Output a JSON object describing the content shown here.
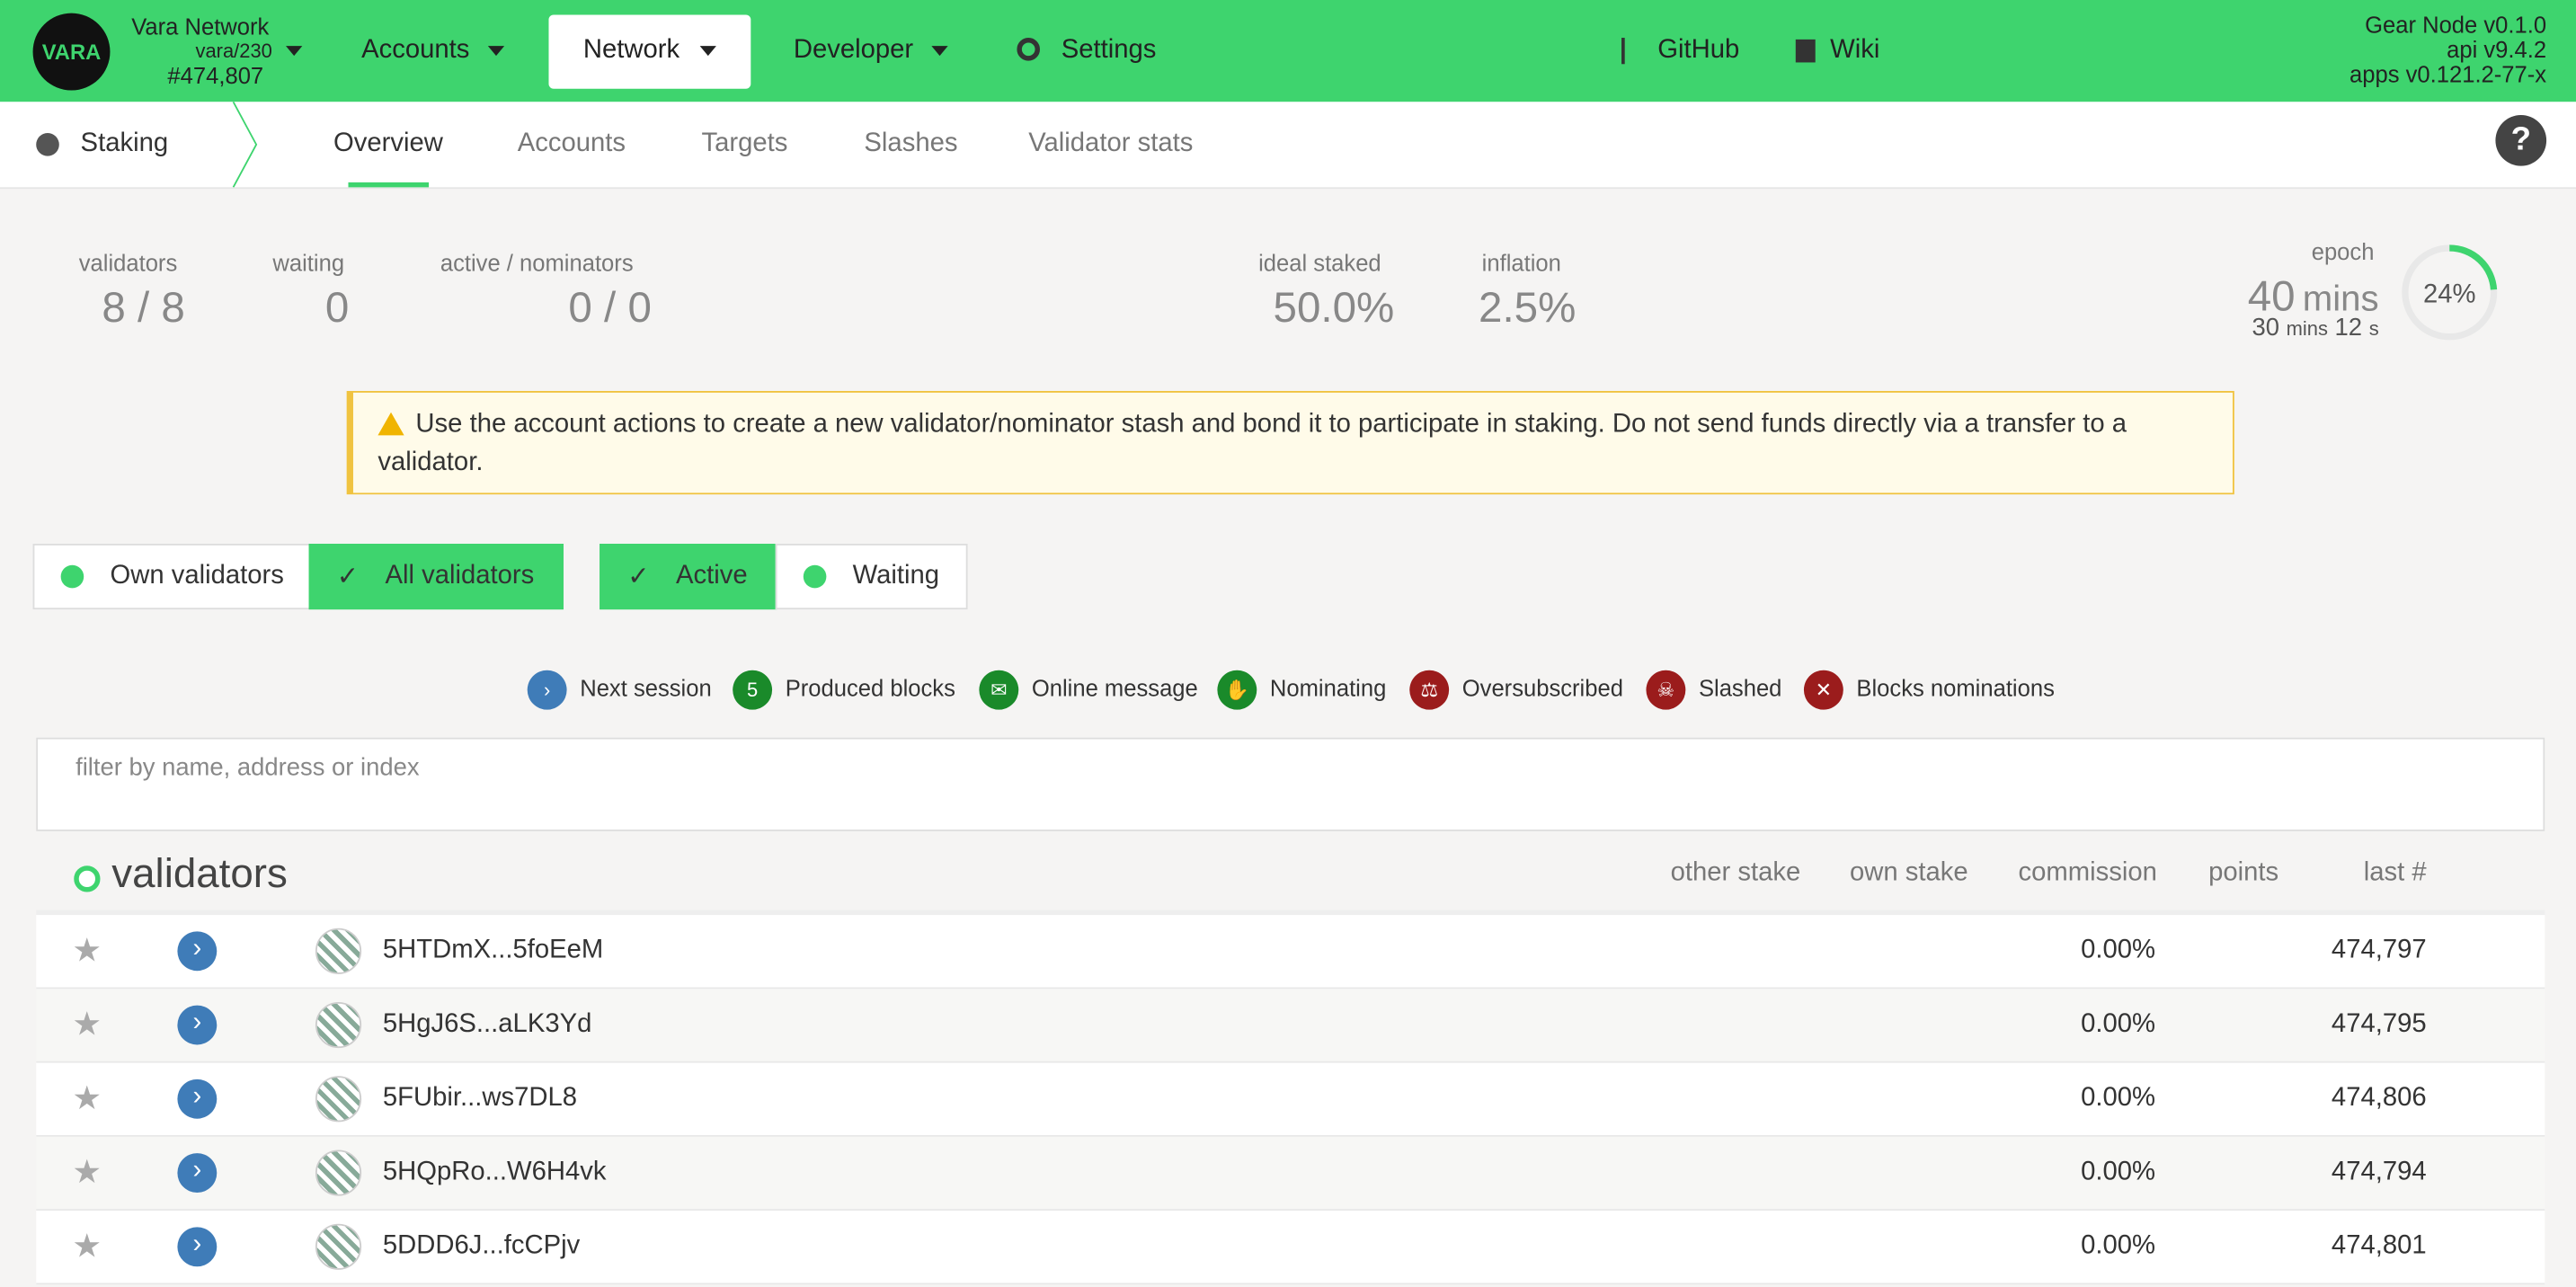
{
  "header": {
    "network_name": "Vara Network",
    "chain": "vara/230",
    "block": "#474,807",
    "logo": "VARA",
    "menu": [
      "Accounts",
      "Network",
      "Developer",
      "Settings"
    ],
    "links": [
      "GitHub",
      "Wiki"
    ],
    "versions": [
      "Gear Node v0.1.0",
      "api v9.4.2",
      "apps v0.121.2-77-x"
    ]
  },
  "tabs": {
    "section": "Staking",
    "items": [
      "Overview",
      "Accounts",
      "Targets",
      "Slashes",
      "Validator stats"
    ]
  },
  "summary": {
    "validators": {
      "label": "validators",
      "value": "8 / 8"
    },
    "waiting": {
      "label": "waiting",
      "value": "0"
    },
    "active": {
      "label": "active / nominators",
      "value": "0 / 0"
    },
    "ideal": {
      "label": "ideal staked",
      "value": "50.0%"
    },
    "inflation": {
      "label": "inflation",
      "value": "2.5%"
    },
    "epoch": {
      "label": "epoch",
      "value": "40",
      "unit": "mins",
      "sub_mins": "30",
      "sub_mins_unit": "mins",
      "sub_secs": "12",
      "sub_secs_unit": "s",
      "progress": 24,
      "progress_label": "24%"
    }
  },
  "warning": "Use the account actions to create a new validator/nominator stash and bond it to participate in staking. Do not send funds directly via a transfer to a validator.",
  "toggles": [
    [
      "Own validators",
      "All validators"
    ],
    [
      "Active",
      "Waiting"
    ]
  ],
  "legend": [
    "Next session",
    "Produced blocks",
    "Online message",
    "Nominating",
    "Oversubscribed",
    "Slashed",
    "Blocks nominations"
  ],
  "legend_blocks_icon": "5",
  "filter_placeholder": "filter by name, address or index",
  "table": {
    "title": "validators",
    "columns": [
      "other stake",
      "own stake",
      "commission",
      "points",
      "last #"
    ],
    "rows": [
      [
        "5HTDmX...5foEeM",
        "0.00%",
        "474,797"
      ],
      [
        "5HgJ6S...aLK3Yd",
        "0.00%",
        "474,795"
      ],
      [
        "5FUbir...ws7DL8",
        "0.00%",
        "474,806"
      ],
      [
        "5HQpRo...W6H4vk",
        "0.00%",
        "474,794"
      ],
      [
        "5DDD6J...fcCPjv",
        "0.00%",
        "474,801"
      ]
    ]
  }
}
